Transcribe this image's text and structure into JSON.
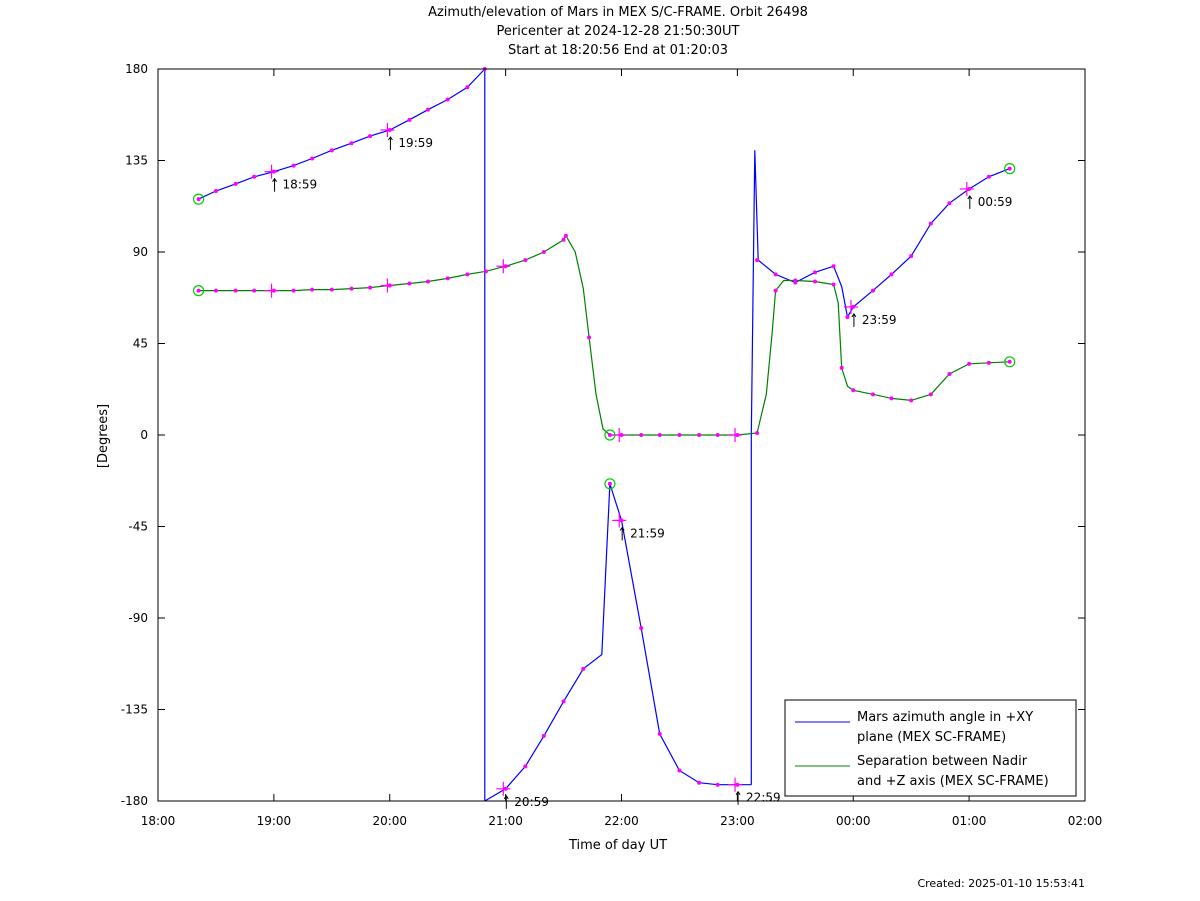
{
  "chart_data": {
    "type": "line",
    "title_lines": [
      "Azimuth/elevation of Mars in MEX S/C-FRAME.  Orbit 26498",
      "Pericenter at 2024-12-28 21:50:30UT",
      "Start at 18:20:56 End at 01:20:03"
    ],
    "xlabel": "Time of day UT",
    "ylabel": "[Degrees]",
    "xlim": [
      18.0,
      26.0
    ],
    "ylim": [
      -180,
      180
    ],
    "x_ticks": [
      {
        "v": 18,
        "label": "18:00"
      },
      {
        "v": 19,
        "label": "19:00"
      },
      {
        "v": 20,
        "label": "20:00"
      },
      {
        "v": 21,
        "label": "21:00"
      },
      {
        "v": 22,
        "label": "22:00"
      },
      {
        "v": 23,
        "label": "23:00"
      },
      {
        "v": 24,
        "label": "00:00"
      },
      {
        "v": 25,
        "label": "01:00"
      },
      {
        "v": 26,
        "label": "02:00"
      }
    ],
    "y_ticks": [
      {
        "v": 180,
        "label": "180"
      },
      {
        "v": 135,
        "label": "135"
      },
      {
        "v": 90,
        "label": "90"
      },
      {
        "v": 45,
        "label": "45"
      },
      {
        "v": 0,
        "label": "0"
      },
      {
        "v": -45,
        "label": "-45"
      },
      {
        "v": -90,
        "label": "-90"
      },
      {
        "v": -135,
        "label": "-135"
      },
      {
        "v": -180,
        "label": "-180"
      }
    ],
    "legend_position": "bottom-right",
    "series": [
      {
        "name_lines": [
          "Mars azimuth angle in +XY",
          "plane (MEX SC-FRAME)"
        ],
        "color": "#0000ff",
        "segments": [
          [
            [
              18.35,
              116
            ],
            [
              18.5,
              120
            ],
            [
              18.67,
              123.5
            ],
            [
              18.83,
              127
            ],
            [
              19.0,
              129.5
            ],
            [
              19.17,
              132.5
            ],
            [
              19.33,
              136
            ],
            [
              19.5,
              140
            ],
            [
              19.67,
              143.5
            ],
            [
              19.83,
              147
            ],
            [
              20.0,
              150
            ],
            [
              20.17,
              155
            ],
            [
              20.33,
              160
            ],
            [
              20.5,
              165
            ],
            [
              20.67,
              171
            ],
            [
              20.82,
              180
            ]
          ],
          [
            [
              20.82,
              180
            ],
            [
              20.82,
              -180
            ]
          ],
          [
            [
              20.82,
              -180
            ],
            [
              21.0,
              -174
            ],
            [
              21.17,
              -163
            ],
            [
              21.33,
              -148
            ],
            [
              21.5,
              -131
            ],
            [
              21.67,
              -115
            ],
            [
              21.83,
              -108
            ],
            [
              21.87,
              -60
            ],
            [
              21.9,
              -24
            ],
            [
              22.0,
              -42
            ],
            [
              22.17,
              -95
            ],
            [
              22.33,
              -147
            ],
            [
              22.5,
              -165
            ],
            [
              22.67,
              -171
            ],
            [
              22.83,
              -172
            ],
            [
              23.0,
              -172
            ],
            [
              23.12,
              -172
            ]
          ],
          [
            [
              23.12,
              -172
            ],
            [
              23.12,
              0
            ],
            [
              23.15,
              140
            ],
            [
              23.18,
              86
            ],
            [
              23.33,
              79
            ],
            [
              23.5,
              75
            ],
            [
              23.67,
              80
            ],
            [
              23.83,
              83
            ],
            [
              23.9,
              73
            ],
            [
              23.95,
              58
            ],
            [
              24.0,
              63
            ],
            [
              24.17,
              71
            ],
            [
              24.33,
              79
            ],
            [
              24.5,
              88
            ],
            [
              24.67,
              104
            ],
            [
              24.83,
              114
            ],
            [
              25.0,
              121
            ],
            [
              25.17,
              127
            ],
            [
              25.35,
              131
            ]
          ]
        ],
        "markers": [
          [
            18.35,
            116
          ],
          [
            18.5,
            120
          ],
          [
            18.67,
            123.5
          ],
          [
            18.83,
            127
          ],
          [
            19.0,
            129.5
          ],
          [
            19.17,
            132.5
          ],
          [
            19.33,
            136
          ],
          [
            19.5,
            140
          ],
          [
            19.67,
            143.5
          ],
          [
            19.83,
            147
          ],
          [
            20.0,
            150
          ],
          [
            20.17,
            155
          ],
          [
            20.33,
            160
          ],
          [
            20.5,
            165
          ],
          [
            20.67,
            171
          ],
          [
            20.82,
            180
          ],
          [
            21.0,
            -174
          ],
          [
            21.17,
            -163
          ],
          [
            21.33,
            -148
          ],
          [
            21.5,
            -131
          ],
          [
            21.67,
            -115
          ],
          [
            21.9,
            -24
          ],
          [
            22.0,
            -42
          ],
          [
            22.17,
            -95
          ],
          [
            22.33,
            -147
          ],
          [
            22.5,
            -165
          ],
          [
            22.67,
            -171
          ],
          [
            22.83,
            -172
          ],
          [
            23.0,
            -172
          ],
          [
            23.17,
            86
          ],
          [
            23.33,
            79
          ],
          [
            23.5,
            75
          ],
          [
            23.67,
            80
          ],
          [
            23.83,
            83
          ],
          [
            23.95,
            58
          ],
          [
            24.0,
            63
          ],
          [
            24.17,
            71
          ],
          [
            24.33,
            79
          ],
          [
            24.5,
            88
          ],
          [
            24.67,
            104
          ],
          [
            24.83,
            114
          ],
          [
            25.0,
            121
          ],
          [
            25.17,
            127
          ],
          [
            25.35,
            131
          ]
        ],
        "endpoints": [
          [
            18.35,
            116
          ],
          [
            21.9,
            -24
          ],
          [
            25.35,
            131
          ]
        ]
      },
      {
        "name_lines": [
          "Separation between Nadir",
          "and +Z axis (MEX SC-FRAME)"
        ],
        "color": "#008000",
        "segments": [
          [
            [
              18.35,
              71
            ],
            [
              18.5,
              71
            ],
            [
              18.67,
              71
            ],
            [
              18.83,
              71
            ],
            [
              19.0,
              71
            ],
            [
              19.17,
              71
            ],
            [
              19.33,
              71.5
            ],
            [
              19.5,
              71.5
            ],
            [
              19.67,
              72
            ],
            [
              19.83,
              72.5
            ],
            [
              20.0,
              73.5
            ],
            [
              20.17,
              74.5
            ],
            [
              20.33,
              75.5
            ],
            [
              20.5,
              77
            ],
            [
              20.67,
              79
            ],
            [
              20.83,
              80.5
            ],
            [
              21.0,
              83
            ],
            [
              21.17,
              86
            ],
            [
              21.33,
              90
            ],
            [
              21.5,
              96
            ],
            [
              21.52,
              98
            ],
            [
              21.6,
              90
            ],
            [
              21.67,
              72
            ],
            [
              21.72,
              48
            ],
            [
              21.78,
              20
            ],
            [
              21.84,
              3
            ],
            [
              21.9,
              0
            ],
            [
              22.0,
              0
            ],
            [
              22.17,
              0
            ],
            [
              22.33,
              0
            ],
            [
              22.5,
              0
            ],
            [
              22.67,
              0
            ],
            [
              22.83,
              0
            ],
            [
              23.0,
              0
            ],
            [
              23.17,
              1
            ],
            [
              23.25,
              20
            ],
            [
              23.3,
              50
            ],
            [
              23.33,
              71
            ],
            [
              23.4,
              76
            ],
            [
              23.5,
              76
            ],
            [
              23.67,
              75.5
            ],
            [
              23.83,
              74
            ],
            [
              23.87,
              65
            ],
            [
              23.9,
              33
            ],
            [
              23.95,
              24
            ],
            [
              24.0,
              22
            ],
            [
              24.17,
              20
            ],
            [
              24.33,
              18
            ],
            [
              24.5,
              17
            ],
            [
              24.67,
              20
            ],
            [
              24.83,
              30
            ],
            [
              25.0,
              35
            ],
            [
              25.17,
              35.5
            ],
            [
              25.35,
              36
            ]
          ]
        ],
        "markers": [
          [
            18.35,
            71
          ],
          [
            18.5,
            71
          ],
          [
            18.67,
            71
          ],
          [
            18.83,
            71
          ],
          [
            19.0,
            71
          ],
          [
            19.17,
            71
          ],
          [
            19.33,
            71.5
          ],
          [
            19.5,
            71.5
          ],
          [
            19.67,
            72
          ],
          [
            19.83,
            72.5
          ],
          [
            20.0,
            73.5
          ],
          [
            20.17,
            74.5
          ],
          [
            20.33,
            75.5
          ],
          [
            20.5,
            77
          ],
          [
            20.67,
            79
          ],
          [
            20.83,
            80.5
          ],
          [
            21.0,
            83
          ],
          [
            21.17,
            86
          ],
          [
            21.33,
            90
          ],
          [
            21.5,
            96
          ],
          [
            21.52,
            98
          ],
          [
            21.72,
            48
          ],
          [
            21.9,
            0
          ],
          [
            22.0,
            0
          ],
          [
            22.17,
            0
          ],
          [
            22.33,
            0
          ],
          [
            22.5,
            0
          ],
          [
            22.67,
            0
          ],
          [
            22.83,
            0
          ],
          [
            23.0,
            0
          ],
          [
            23.17,
            1
          ],
          [
            23.33,
            71
          ],
          [
            23.5,
            76
          ],
          [
            23.67,
            75.5
          ],
          [
            23.83,
            74
          ],
          [
            23.9,
            33
          ],
          [
            24.0,
            22
          ],
          [
            24.17,
            20
          ],
          [
            24.33,
            18
          ],
          [
            24.5,
            17
          ],
          [
            24.67,
            20
          ],
          [
            24.83,
            30
          ],
          [
            25.0,
            35
          ],
          [
            25.17,
            35.5
          ],
          [
            25.35,
            36
          ]
        ],
        "endpoints": [
          [
            18.35,
            71
          ],
          [
            21.9,
            0
          ],
          [
            25.35,
            36
          ]
        ]
      }
    ],
    "hour_marks": [
      {
        "x": 18.98,
        "y": 129.5,
        "label": "18:59"
      },
      {
        "x": 19.98,
        "y": 150,
        "label": "19:59"
      },
      {
        "x": 20.98,
        "y": -174,
        "label": "20:59"
      },
      {
        "x": 21.98,
        "y": -42,
        "label": "21:59"
      },
      {
        "x": 22.98,
        "y": -172,
        "label": "22:59"
      },
      {
        "x": 23.98,
        "y": 63,
        "label": "23:59"
      },
      {
        "x": 24.98,
        "y": 121,
        "label": "00:59"
      }
    ],
    "hour_crosses_green": [
      [
        18.98,
        71
      ],
      [
        19.98,
        73.5
      ],
      [
        20.98,
        83
      ],
      [
        21.98,
        0
      ],
      [
        22.98,
        0
      ]
    ],
    "created": "Created: 2025-01-10 15:53:41"
  }
}
